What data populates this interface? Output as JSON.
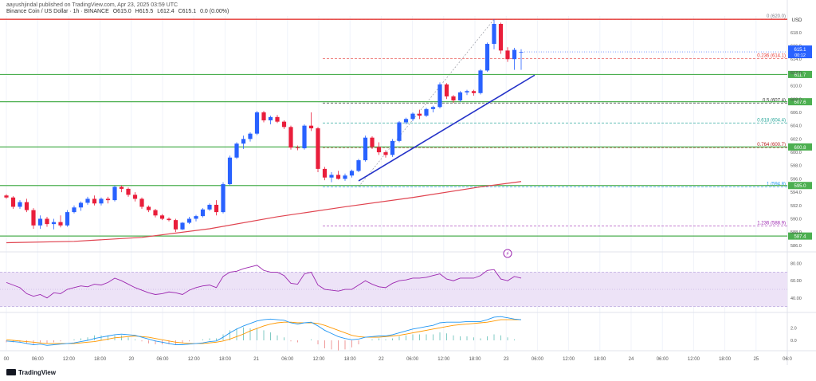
{
  "header": {
    "credit": "aayushjindal published on TradingView.com, Apr 23, 2025 03:59 UTC",
    "symbol": "Binance Coin / US Dollar · 1h · BINANCE",
    "ohlc": {
      "o": "O615.0",
      "h": "H615.5",
      "l": "L612.4",
      "c": "C615.1",
      "chg": "0.0 (0.00%)"
    }
  },
  "axis": {
    "currency": "USD",
    "price_ticks": [
      "618.0",
      "616.0",
      "614.0",
      "612.0",
      "610.0",
      "608.0",
      "606.0",
      "604.0",
      "602.0",
      "600.0",
      "598.0",
      "596.0",
      "594.0",
      "592.0",
      "590.0",
      "588.0",
      "586.0"
    ],
    "rsi_ticks": [
      "80.00",
      "60.00",
      "40.00"
    ],
    "macd_ticks": [
      "2.0",
      "0.0"
    ],
    "time_ticks": [
      "00",
      "06:00",
      "12:00",
      "18:00",
      "20",
      "06:00",
      "12:00",
      "18:00",
      "21",
      "06:00",
      "12:00",
      "18:00",
      "22",
      "06:00",
      "12:00",
      "18:00",
      "23",
      "06:00",
      "12:00",
      "18:00",
      "24",
      "06:00",
      "12:00",
      "18:00",
      "25",
      "06:0"
    ]
  },
  "price_labels": {
    "current": "615.1",
    "countdown": "00:12",
    "r1": "611.7",
    "r2": "607.6",
    "r3": "600.8",
    "r4": "595.0",
    "r5": "587.4"
  },
  "fib_labels": [
    {
      "text": "0 (620.0)",
      "color": "#787b86"
    },
    {
      "text": "0.236 (614.1)",
      "color": "#e53935"
    },
    {
      "text": "0.5 (607.4)",
      "color": "#333333"
    },
    {
      "text": "0.618 (604.4)",
      "color": "#26a69a"
    },
    {
      "text": "0.764 (600.7)",
      "color": "#b71c1c"
    },
    {
      "text": "1 (594.8)",
      "color": "#2196f3"
    },
    {
      "text": "1.236 (588.9)",
      "color": "#9c27b0"
    }
  ],
  "colors": {
    "up": "#2962ff",
    "down": "#e91e3b",
    "support": "#4caf50",
    "resistance": "#e53935",
    "ma": "#e0434f",
    "trendline": "#2432c8",
    "rsi": "#9c27b0",
    "rsi_band": "#ede3f7",
    "macd": "#2196f3",
    "signal": "#ff9800"
  },
  "chart_data": {
    "type": "candlestick",
    "interval": "1h",
    "ylim": [
      585.5,
      620.5
    ],
    "candles": [
      [
        593.5,
        593.7,
        593.0,
        593.2
      ],
      [
        593.2,
        593.4,
        591.5,
        591.8
      ],
      [
        591.8,
        592.8,
        591.5,
        592.5
      ],
      [
        592.5,
        593.0,
        591.0,
        591.3
      ],
      [
        591.3,
        591.6,
        588.5,
        589.0
      ],
      [
        589.0,
        590.5,
        588.5,
        590.0
      ],
      [
        590.0,
        590.3,
        588.8,
        589.2
      ],
      [
        589.2,
        590.0,
        588.4,
        589.5
      ],
      [
        589.5,
        590.5,
        588.7,
        589.0
      ],
      [
        589.0,
        591.3,
        588.8,
        591.0
      ],
      [
        591.0,
        592.0,
        590.8,
        591.7
      ],
      [
        591.7,
        592.6,
        591.2,
        592.4
      ],
      [
        592.4,
        593.3,
        592.1,
        593.0
      ],
      [
        593.0,
        593.5,
        592.0,
        592.3
      ],
      [
        592.3,
        593.2,
        592.0,
        593.0
      ],
      [
        593.0,
        593.3,
        592.3,
        592.8
      ],
      [
        592.8,
        595.0,
        592.6,
        594.8
      ],
      [
        594.8,
        595.0,
        594.0,
        594.5
      ],
      [
        594.5,
        594.7,
        593.3,
        593.6
      ],
      [
        593.6,
        594.0,
        592.6,
        593.0
      ],
      [
        593.0,
        593.2,
        591.5,
        591.8
      ],
      [
        591.8,
        592.0,
        591.0,
        591.3
      ],
      [
        591.3,
        591.5,
        590.2,
        590.5
      ],
      [
        590.5,
        590.7,
        589.8,
        590.0
      ],
      [
        590.0,
        590.2,
        589.6,
        589.8
      ],
      [
        589.8,
        590.0,
        588.0,
        588.4
      ],
      [
        588.4,
        589.5,
        588.3,
        589.4
      ],
      [
        589.4,
        590.3,
        589.2,
        590.0
      ],
      [
        590.0,
        590.6,
        589.6,
        590.4
      ],
      [
        590.4,
        591.6,
        590.2,
        591.4
      ],
      [
        591.4,
        592.3,
        591.2,
        592.1
      ],
      [
        592.1,
        592.8,
        590.5,
        591.0
      ],
      [
        591.0,
        595.5,
        590.8,
        595.2
      ],
      [
        595.2,
        599.5,
        595.0,
        599.2
      ],
      [
        599.2,
        601.5,
        599.0,
        601.3
      ],
      [
        601.3,
        602.5,
        600.5,
        602.0
      ],
      [
        602.0,
        603.0,
        601.6,
        602.8
      ],
      [
        602.8,
        606.2,
        602.6,
        606.0
      ],
      [
        606.0,
        606.2,
        604.5,
        604.8
      ],
      [
        604.8,
        605.5,
        604.2,
        605.3
      ],
      [
        605.3,
        605.6,
        604.4,
        604.6
      ],
      [
        604.6,
        604.8,
        603.5,
        603.8
      ],
      [
        603.8,
        604.0,
        600.4,
        600.7
      ],
      [
        600.7,
        601.0,
        600.3,
        600.6
      ],
      [
        600.6,
        604.2,
        600.4,
        604.0
      ],
      [
        604.0,
        606.0,
        603.2,
        603.6
      ],
      [
        603.6,
        603.8,
        597.0,
        597.5
      ],
      [
        597.5,
        597.8,
        595.8,
        596.2
      ],
      [
        596.2,
        597.0,
        595.5,
        596.6
      ],
      [
        596.6,
        597.2,
        595.9,
        596.0
      ],
      [
        596.0,
        596.8,
        595.7,
        596.5
      ],
      [
        596.5,
        597.4,
        596.2,
        597.2
      ],
      [
        597.2,
        599.0,
        597.0,
        598.8
      ],
      [
        598.8,
        602.5,
        598.6,
        602.2
      ],
      [
        602.2,
        602.4,
        600.5,
        600.8
      ],
      [
        600.8,
        601.5,
        599.6,
        600.0
      ],
      [
        600.0,
        600.3,
        599.2,
        599.6
      ],
      [
        599.6,
        602.0,
        599.3,
        601.7
      ],
      [
        601.7,
        604.7,
        601.5,
        604.5
      ],
      [
        604.5,
        605.2,
        604.2,
        605.0
      ],
      [
        605.0,
        606.0,
        604.7,
        605.8
      ],
      [
        605.8,
        606.4,
        605.0,
        605.5
      ],
      [
        605.5,
        606.7,
        605.3,
        606.5
      ],
      [
        606.5,
        607.0,
        606.0,
        606.8
      ],
      [
        606.8,
        610.5,
        606.6,
        610.2
      ],
      [
        610.2,
        610.4,
        608.0,
        608.4
      ],
      [
        608.4,
        608.6,
        607.4,
        607.8
      ],
      [
        607.8,
        609.2,
        607.6,
        609.0
      ],
      [
        609.0,
        609.4,
        608.6,
        609.2
      ],
      [
        609.2,
        609.4,
        608.5,
        608.9
      ],
      [
        608.9,
        612.5,
        608.7,
        612.3
      ],
      [
        612.3,
        616.5,
        612.1,
        616.3
      ],
      [
        616.3,
        620.0,
        615.5,
        619.3
      ],
      [
        619.3,
        619.5,
        614.8,
        615.3
      ],
      [
        615.3,
        615.8,
        613.6,
        614.0
      ],
      [
        614.0,
        615.7,
        612.4,
        615.4
      ],
      [
        615.0,
        615.5,
        612.4,
        615.1
      ]
    ],
    "moving_average": [
      [
        0,
        586.4
      ],
      [
        10,
        586.6
      ],
      [
        20,
        587.2
      ],
      [
        30,
        588.5
      ],
      [
        40,
        590.3
      ],
      [
        50,
        591.8
      ],
      [
        60,
        593.2
      ],
      [
        70,
        594.8
      ],
      [
        76,
        595.6
      ]
    ],
    "support_levels": [
      611.7,
      607.6,
      600.8,
      595.0,
      587.4
    ],
    "resistance_levels": [
      620.0
    ],
    "fib_levels": [
      {
        "ratio": "0",
        "price": 620.0
      },
      {
        "ratio": "0.236",
        "price": 614.1
      },
      {
        "ratio": "0.5",
        "price": 607.4
      },
      {
        "ratio": "0.618",
        "price": 604.4
      },
      {
        "ratio": "0.764",
        "price": 600.7
      },
      {
        "ratio": "1",
        "price": 594.8
      },
      {
        "ratio": "1.236",
        "price": 588.9
      }
    ],
    "trendline": {
      "from": [
        52,
        595.7
      ],
      "to": [
        78,
        611.6
      ]
    },
    "rsi": {
      "ylim": [
        25,
        88
      ],
      "band": [
        30,
        70
      ],
      "midline": 50,
      "values": [
        58,
        55,
        52,
        45,
        42,
        44,
        40,
        46,
        45,
        50,
        52,
        54,
        53,
        56,
        55,
        58,
        63,
        60,
        56,
        52,
        49,
        46,
        44,
        45,
        47,
        46,
        44,
        49,
        52,
        54,
        55,
        52,
        65,
        70,
        71,
        74,
        76,
        78,
        72,
        70,
        70,
        66,
        57,
        56,
        68,
        70,
        55,
        50,
        49,
        48,
        50,
        50,
        55,
        60,
        56,
        53,
        52,
        57,
        60,
        61,
        63,
        63,
        64,
        66,
        68,
        62,
        60,
        63,
        63,
        63,
        66,
        72,
        73,
        62,
        60,
        65,
        63
      ]
    },
    "macd": {
      "ylim": [
        -1.4,
        4.2
      ],
      "macd": [
        -0.1,
        -0.2,
        -0.3,
        -0.5,
        -0.7,
        -0.6,
        -0.8,
        -0.7,
        -0.6,
        -0.5,
        -0.4,
        -0.2,
        0.0,
        0.3,
        0.5,
        0.7,
        0.9,
        1.0,
        0.9,
        0.8,
        0.5,
        0.2,
        -0.1,
        -0.3,
        -0.5,
        -0.7,
        -0.7,
        -0.6,
        -0.5,
        -0.4,
        -0.2,
        -0.1,
        0.5,
        1.2,
        1.8,
        2.3,
        2.7,
        3.1,
        3.3,
        3.4,
        3.3,
        3.2,
        2.8,
        2.6,
        2.8,
        2.9,
        2.3,
        1.6,
        1.1,
        0.6,
        0.3,
        0.1,
        0.2,
        0.5,
        0.6,
        0.7,
        0.7,
        0.9,
        1.2,
        1.5,
        1.8,
        2.0,
        2.2,
        2.4,
        2.8,
        2.9,
        2.9,
        2.9,
        3.0,
        3.0,
        3.0,
        3.3,
        3.7,
        3.8,
        3.6,
        3.4,
        3.3
      ],
      "signal": [
        0.1,
        0.0,
        -0.1,
        -0.2,
        -0.3,
        -0.4,
        -0.5,
        -0.5,
        -0.5,
        -0.5,
        -0.5,
        -0.4,
        -0.3,
        -0.2,
        0.0,
        0.2,
        0.4,
        0.5,
        0.6,
        0.7,
        0.6,
        0.5,
        0.3,
        0.1,
        -0.1,
        -0.3,
        -0.4,
        -0.5,
        -0.5,
        -0.5,
        -0.4,
        -0.3,
        -0.1,
        0.2,
        0.6,
        1.0,
        1.5,
        1.9,
        2.3,
        2.6,
        2.8,
        2.9,
        2.9,
        2.8,
        2.8,
        2.8,
        2.7,
        2.4,
        2.0,
        1.6,
        1.2,
        0.8,
        0.6,
        0.5,
        0.5,
        0.5,
        0.6,
        0.7,
        0.8,
        1.0,
        1.2,
        1.4,
        1.6,
        1.8,
        2.0,
        2.2,
        2.4,
        2.5,
        2.6,
        2.7,
        2.8,
        2.9,
        3.1,
        3.3,
        3.3,
        3.3,
        3.3
      ]
    }
  }
}
